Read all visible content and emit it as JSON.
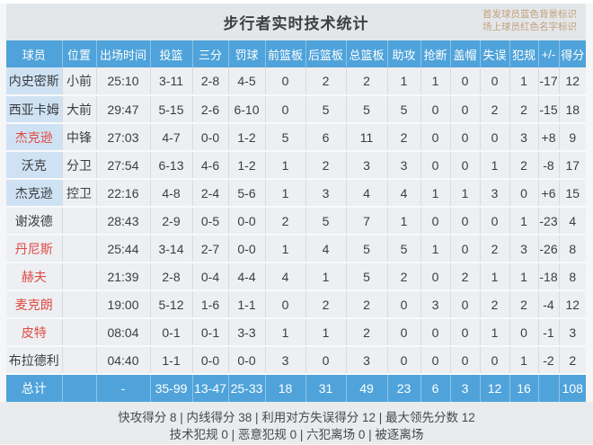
{
  "title": "步行者实时技术统计",
  "legend": {
    "line1": "首发球员蓝色背景标识",
    "line2": "场上球员红色名字标识"
  },
  "columns": [
    "球员",
    "位置",
    "出场时间",
    "投篮",
    "三分",
    "罚球",
    "前篮板",
    "后篮板",
    "总篮板",
    "助攻",
    "抢断",
    "盖帽",
    "失误",
    "犯规",
    "+/-",
    "得分"
  ],
  "column_keys": [
    "name",
    "pos",
    "time",
    "fg",
    "tp",
    "ft",
    "oreb",
    "dreb",
    "treb",
    "ast",
    "stl",
    "blk",
    "to",
    "pf",
    "pm",
    "pts"
  ],
  "players": [
    {
      "name": "内史密斯",
      "pos": "小前",
      "time": "25:10",
      "fg": "3-11",
      "tp": "2-8",
      "ft": "4-5",
      "oreb": "0",
      "dreb": "2",
      "treb": "2",
      "ast": "1",
      "stl": "1",
      "blk": "0",
      "to": "0",
      "pf": "1",
      "pm": "-17",
      "pts": "12",
      "starter": true,
      "oncourt": false
    },
    {
      "name": "西亚卡姆",
      "pos": "大前",
      "time": "29:47",
      "fg": "5-15",
      "tp": "2-6",
      "ft": "6-10",
      "oreb": "0",
      "dreb": "5",
      "treb": "5",
      "ast": "5",
      "stl": "0",
      "blk": "0",
      "to": "2",
      "pf": "2",
      "pm": "-15",
      "pts": "18",
      "starter": true,
      "oncourt": false
    },
    {
      "name": "杰克逊",
      "pos": "中锋",
      "time": "27:03",
      "fg": "4-7",
      "tp": "0-0",
      "ft": "1-2",
      "oreb": "5",
      "dreb": "6",
      "treb": "11",
      "ast": "2",
      "stl": "0",
      "blk": "0",
      "to": "0",
      "pf": "3",
      "pm": "+8",
      "pts": "9",
      "starter": true,
      "oncourt": true
    },
    {
      "name": "沃克",
      "pos": "分卫",
      "time": "27:54",
      "fg": "6-13",
      "tp": "4-6",
      "ft": "1-2",
      "oreb": "1",
      "dreb": "2",
      "treb": "3",
      "ast": "3",
      "stl": "0",
      "blk": "0",
      "to": "1",
      "pf": "2",
      "pm": "-8",
      "pts": "17",
      "starter": true,
      "oncourt": false
    },
    {
      "name": "杰克逊",
      "pos": "控卫",
      "time": "22:16",
      "fg": "4-8",
      "tp": "2-4",
      "ft": "5-6",
      "oreb": "1",
      "dreb": "3",
      "treb": "4",
      "ast": "4",
      "stl": "1",
      "blk": "1",
      "to": "3",
      "pf": "0",
      "pm": "+6",
      "pts": "15",
      "starter": true,
      "oncourt": false
    },
    {
      "name": "谢泼德",
      "pos": "",
      "time": "28:43",
      "fg": "2-9",
      "tp": "0-5",
      "ft": "0-0",
      "oreb": "2",
      "dreb": "5",
      "treb": "7",
      "ast": "1",
      "stl": "0",
      "blk": "0",
      "to": "0",
      "pf": "1",
      "pm": "-23",
      "pts": "4",
      "starter": false,
      "oncourt": false
    },
    {
      "name": "丹尼斯",
      "pos": "",
      "time": "25:44",
      "fg": "3-14",
      "tp": "2-7",
      "ft": "0-0",
      "oreb": "1",
      "dreb": "4",
      "treb": "5",
      "ast": "5",
      "stl": "1",
      "blk": "0",
      "to": "2",
      "pf": "3",
      "pm": "-26",
      "pts": "8",
      "starter": false,
      "oncourt": true
    },
    {
      "name": "赫夫",
      "pos": "",
      "time": "21:39",
      "fg": "2-8",
      "tp": "0-4",
      "ft": "4-4",
      "oreb": "4",
      "dreb": "1",
      "treb": "5",
      "ast": "2",
      "stl": "0",
      "blk": "2",
      "to": "1",
      "pf": "1",
      "pm": "-18",
      "pts": "8",
      "starter": false,
      "oncourt": true
    },
    {
      "name": "麦克朗",
      "pos": "",
      "time": "19:00",
      "fg": "5-12",
      "tp": "1-6",
      "ft": "1-1",
      "oreb": "0",
      "dreb": "2",
      "treb": "2",
      "ast": "0",
      "stl": "3",
      "blk": "0",
      "to": "2",
      "pf": "2",
      "pm": "-4",
      "pts": "12",
      "starter": false,
      "oncourt": true
    },
    {
      "name": "皮特",
      "pos": "",
      "time": "08:04",
      "fg": "0-1",
      "tp": "0-1",
      "ft": "3-3",
      "oreb": "1",
      "dreb": "1",
      "treb": "2",
      "ast": "0",
      "stl": "0",
      "blk": "0",
      "to": "1",
      "pf": "0",
      "pm": "-1",
      "pts": "3",
      "starter": false,
      "oncourt": true
    },
    {
      "name": "布拉德利",
      "pos": "",
      "time": "04:40",
      "fg": "1-1",
      "tp": "0-0",
      "ft": "0-0",
      "oreb": "3",
      "dreb": "0",
      "treb": "3",
      "ast": "0",
      "stl": "0",
      "blk": "0",
      "to": "0",
      "pf": "1",
      "pm": "-2",
      "pts": "2",
      "starter": false,
      "oncourt": false
    }
  ],
  "totals": {
    "name": "总计",
    "pos": "",
    "time": "-",
    "fg": "35-99",
    "tp": "13-47",
    "ft": "25-33",
    "oreb": "18",
    "dreb": "31",
    "treb": "49",
    "ast": "23",
    "stl": "6",
    "blk": "3",
    "to": "12",
    "pf": "16",
    "pm": "",
    "pts": "108"
  },
  "footer": {
    "line1": "快攻得分 8 | 内线得分 38 | 利用对方失误得分 12 | 最大领先分数 12",
    "line2": "技术犯规 0 | 恶意犯规 0 | 六犯离场 0 | 被逐离场"
  },
  "colors": {
    "accent_blue": "#4fa3da",
    "starter_bg": "#cfe2f3",
    "oncourt_red": "#e04a44",
    "band_bg": "#e4e7e9",
    "cell_bg": "#edeff2",
    "footer_bg": "#e9ebed",
    "legend_text": "#c2a07c"
  }
}
